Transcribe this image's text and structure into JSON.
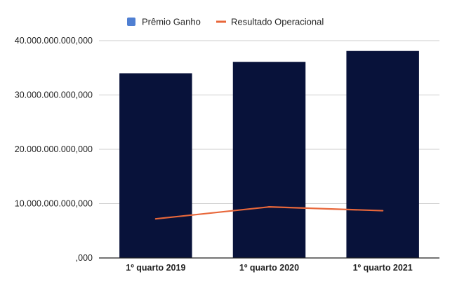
{
  "chart_data": {
    "type": "bar",
    "title": "",
    "xlabel": "",
    "ylabel": "",
    "categories": [
      "1º quarto 2019",
      "1º quarto 2020",
      "1º quarto 2021"
    ],
    "series": [
      {
        "name": "Prêmio Ganho",
        "kind": "bar",
        "color": "#08123a",
        "values": [
          34000000000000,
          36100000000000,
          38100000000000
        ]
      },
      {
        "name": "Resultado Operacional",
        "kind": "line",
        "color": "#e8673a",
        "values": [
          7200000000000,
          9400000000000,
          8700000000000
        ]
      }
    ],
    "ylim": [
      0,
      40000000000000
    ],
    "yticks": [
      {
        "value": 0,
        "label": ",000"
      },
      {
        "value": 10000000000000,
        "label": "10.000.000.000,000"
      },
      {
        "value": 20000000000000,
        "label": "20.000.000.000,000"
      },
      {
        "value": 30000000000000,
        "label": "30.000.000.000,000"
      },
      {
        "value": 40000000000000,
        "label": "40.000.000.000,000"
      }
    ],
    "grid": true,
    "legend_position": "top-center"
  }
}
